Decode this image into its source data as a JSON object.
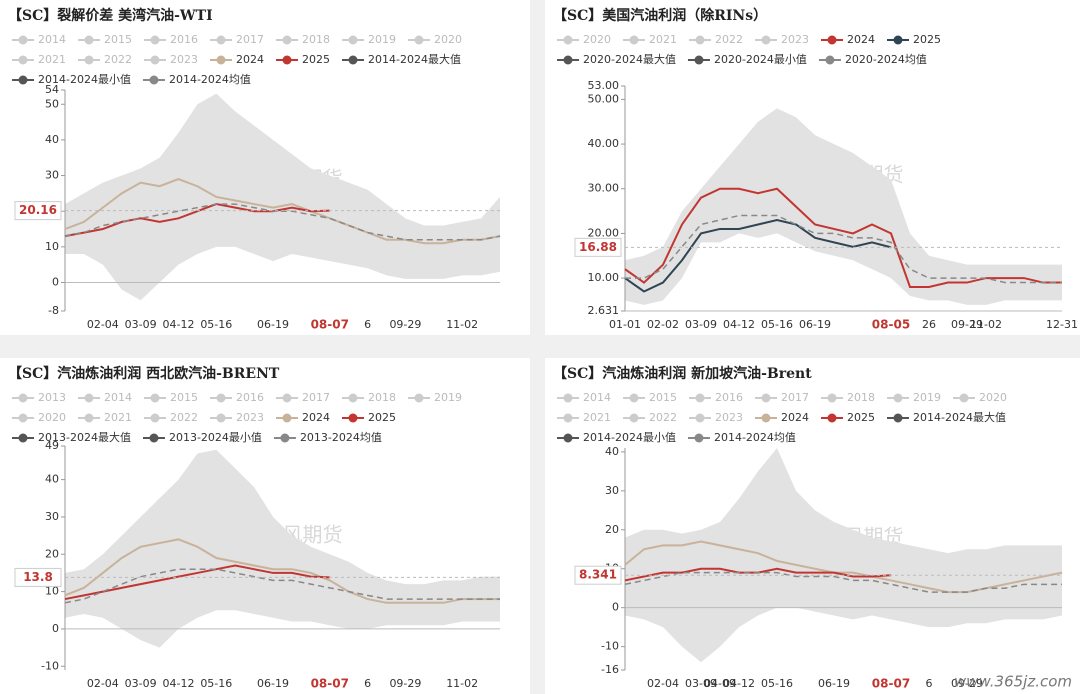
{
  "chart_data": [
    {
      "type": "line",
      "title": "【SC】裂解价差 美湾汽油-WTI",
      "watermark": "紫金天风期货",
      "band_color": "#e2e2e2",
      "categories": [
        null,
        null,
        "02-04",
        null,
        "03-09",
        null,
        "04-12",
        null,
        "05-16",
        null,
        null,
        "06-19",
        null,
        null,
        "08-07",
        null,
        "6",
        null,
        "09-29",
        null,
        null,
        "11-02",
        null,
        null
      ],
      "ylim": [
        -8,
        54
      ],
      "yticks": [
        -8,
        0,
        10,
        20,
        30,
        40,
        50,
        54
      ],
      "pointer": {
        "category": "08-07",
        "value": 20.16
      },
      "series": [
        {
          "name": "2014",
          "color": "#cccccc"
        },
        {
          "name": "2015",
          "color": "#cccccc"
        },
        {
          "name": "2016",
          "color": "#cccccc"
        },
        {
          "name": "2017",
          "color": "#cccccc"
        },
        {
          "name": "2018",
          "color": "#cccccc"
        },
        {
          "name": "2019",
          "color": "#cccccc"
        },
        {
          "name": "2020",
          "color": "#cccccc"
        },
        {
          "name": "2021",
          "color": "#cccccc"
        },
        {
          "name": "2022",
          "color": "#cccccc"
        },
        {
          "name": "2023",
          "color": "#cccccc"
        },
        {
          "name": "2024",
          "color": "#c9b29a",
          "values": [
            15,
            17,
            21,
            25,
            28,
            27,
            29,
            27,
            24,
            23,
            22,
            21,
            22,
            20,
            18,
            16,
            14,
            12,
            12,
            11,
            11,
            12,
            12,
            13
          ]
        },
        {
          "name": "2025",
          "color": "#c23531",
          "values": [
            13,
            14,
            15,
            17,
            18,
            17,
            18,
            20,
            22,
            21,
            20,
            20,
            21,
            20,
            20.16,
            null,
            null,
            null,
            null,
            null,
            null,
            null,
            null,
            null
          ]
        },
        {
          "name": "2014-2024最大值",
          "color": "#555555",
          "band": "upper",
          "values": [
            22,
            25,
            28,
            30,
            32,
            35,
            42,
            50,
            53,
            48,
            44,
            40,
            36,
            32,
            30,
            28,
            26,
            22,
            18,
            16,
            16,
            17,
            18,
            24
          ]
        },
        {
          "name": "2014-2024最小值",
          "color": "#555555",
          "band": "lower",
          "values": [
            8,
            8,
            5,
            -2,
            -5,
            0,
            5,
            8,
            10,
            10,
            8,
            6,
            8,
            7,
            6,
            5,
            4,
            2,
            1,
            1,
            1,
            2,
            2,
            3
          ]
        },
        {
          "name": "2014-2024均值",
          "color": "#888888",
          "dash": true,
          "values": [
            13,
            14,
            16,
            17,
            18,
            19,
            20,
            21,
            22,
            22,
            21,
            20,
            20,
            19,
            18,
            16,
            14,
            13,
            12,
            12,
            12,
            12,
            12,
            13
          ]
        }
      ]
    },
    {
      "type": "line",
      "title": "【SC】美国汽油利润（除RINs）",
      "watermark": "紫金天风期货",
      "band_color": "#e2e2e2",
      "categories": [
        "01-01",
        null,
        "02-02",
        null,
        "03-09",
        null,
        "04-12",
        null,
        "05-16",
        null,
        "06-19",
        null,
        null,
        null,
        "08-05",
        null,
        "26",
        null,
        "09-29",
        "11-02",
        null,
        null,
        null,
        "12-31"
      ],
      "ylim": [
        2.631,
        53
      ],
      "yticks": [
        2.631,
        {
          "value": 10,
          "label": "10.00"
        },
        {
          "value": 20,
          "label": "20.00"
        },
        {
          "value": 30,
          "label": "30.00"
        },
        {
          "value": 40,
          "label": "40.00"
        },
        {
          "value": 50,
          "label": "50.00"
        },
        {
          "value": 53,
          "label": "53.00"
        }
      ],
      "pointer": {
        "category": "08-05",
        "value": 16.88
      },
      "series": [
        {
          "name": "2020",
          "color": "#cccccc"
        },
        {
          "name": "2021",
          "color": "#cccccc"
        },
        {
          "name": "2022",
          "color": "#cccccc"
        },
        {
          "name": "2023",
          "color": "#cccccc"
        },
        {
          "name": "2024",
          "color": "#c23531",
          "values": [
            12,
            9,
            13,
            22,
            28,
            30,
            30,
            29,
            30,
            26,
            22,
            21,
            20,
            22,
            20,
            8,
            8,
            9,
            9,
            10,
            10,
            10,
            9,
            9
          ]
        },
        {
          "name": "2025",
          "color": "#2f4554",
          "values": [
            10,
            7,
            9,
            14,
            20,
            21,
            21,
            22,
            23,
            22,
            19,
            18,
            17,
            18,
            16.88,
            null,
            null,
            null,
            null,
            null,
            null,
            null,
            null,
            null
          ]
        },
        {
          "name": "2020-2024最大值",
          "color": "#555555",
          "band": "upper",
          "values": [
            14,
            15,
            17,
            25,
            30,
            35,
            40,
            45,
            48,
            46,
            42,
            40,
            38,
            35,
            32,
            20,
            15,
            14,
            13,
            13,
            13,
            13,
            13,
            13
          ]
        },
        {
          "name": "2020-2024最小值",
          "color": "#555555",
          "band": "lower",
          "values": [
            5,
            4,
            5,
            10,
            18,
            18,
            20,
            19,
            20,
            18,
            16,
            15,
            14,
            12,
            10,
            6,
            5,
            5,
            4,
            4,
            5,
            5,
            5,
            5
          ]
        },
        {
          "name": "2020-2024均值",
          "color": "#888888",
          "dash": true,
          "values": [
            10,
            10,
            12,
            17,
            22,
            23,
            24,
            24,
            24,
            22,
            20,
            20,
            19,
            19,
            18,
            12,
            10,
            10,
            10,
            10,
            9,
            9,
            9,
            9
          ]
        }
      ]
    },
    {
      "type": "line",
      "title": "【SC】汽油炼油利润 西北欧汽油-BRENT",
      "watermark": "紫金天风期货",
      "band_color": "#e2e2e2",
      "categories": [
        null,
        null,
        "02-04",
        null,
        "03-09",
        null,
        "04-12",
        null,
        "05-16",
        null,
        null,
        "06-19",
        null,
        null,
        "08-07",
        null,
        "6",
        null,
        "09-29",
        null,
        null,
        "11-02",
        null,
        null
      ],
      "ylim": [
        -11,
        49
      ],
      "yticks": [
        -10,
        0,
        10,
        20,
        30,
        40,
        49
      ],
      "pointer": {
        "category": "08-07",
        "value": 13.8
      },
      "series": [
        {
          "name": "2013",
          "color": "#cccccc"
        },
        {
          "name": "2014",
          "color": "#cccccc"
        },
        {
          "name": "2015",
          "color": "#cccccc"
        },
        {
          "name": "2016",
          "color": "#cccccc"
        },
        {
          "name": "2017",
          "color": "#cccccc"
        },
        {
          "name": "2018",
          "color": "#cccccc"
        },
        {
          "name": "2019",
          "color": "#cccccc"
        },
        {
          "name": "2020",
          "color": "#cccccc"
        },
        {
          "name": "2021",
          "color": "#cccccc"
        },
        {
          "name": "2022",
          "color": "#cccccc"
        },
        {
          "name": "2023",
          "color": "#cccccc"
        },
        {
          "name": "2024",
          "color": "#c9b29a",
          "values": [
            9,
            11,
            15,
            19,
            22,
            23,
            24,
            22,
            19,
            18,
            17,
            16,
            16,
            15,
            13,
            10,
            8,
            7,
            7,
            7,
            7,
            8,
            8,
            8
          ]
        },
        {
          "name": "2025",
          "color": "#c23531",
          "values": [
            8,
            9,
            10,
            11,
            12,
            13,
            14,
            15,
            16,
            17,
            16,
            15,
            15,
            14,
            13.8,
            null,
            null,
            null,
            null,
            null,
            null,
            null,
            null,
            null
          ]
        },
        {
          "name": "2013-2024最大值",
          "color": "#555555",
          "band": "upper",
          "values": [
            15,
            16,
            20,
            25,
            30,
            35,
            40,
            47,
            48,
            43,
            38,
            30,
            25,
            22,
            20,
            18,
            15,
            13,
            12,
            12,
            13,
            13,
            14,
            14
          ]
        },
        {
          "name": "2013-2024最小值",
          "color": "#555555",
          "band": "lower",
          "values": [
            3,
            4,
            3,
            0,
            -3,
            -5,
            0,
            3,
            5,
            5,
            4,
            3,
            2,
            2,
            1,
            0,
            0,
            1,
            1,
            1,
            1,
            2,
            2,
            2
          ]
        },
        {
          "name": "2013-2024均值",
          "color": "#888888",
          "dash": true,
          "values": [
            7,
            8,
            10,
            12,
            14,
            15,
            16,
            16,
            16,
            15,
            14,
            13,
            13,
            12,
            11,
            10,
            9,
            8,
            8,
            8,
            8,
            8,
            8,
            8
          ]
        }
      ]
    },
    {
      "type": "line",
      "title": "【SC】汽油炼油利润 新加坡汽油-Brent",
      "watermark": "紫金天风期货",
      "band_color": "#e2e2e2",
      "categories": [
        null,
        null,
        "02-04",
        null,
        "03-09",
        "04-09",
        "04-12",
        null,
        "05-16",
        null,
        null,
        "06-19",
        null,
        null,
        "08-07",
        null,
        "6",
        null,
        "09-29",
        null,
        null,
        null,
        null,
        null
      ],
      "ylim": [
        -16,
        41
      ],
      "yticks": [
        -16,
        -10,
        0,
        10,
        20,
        30,
        40
      ],
      "pointer": {
        "category": "08-07",
        "value": 8.341
      },
      "series": [
        {
          "name": "2014",
          "color": "#cccccc"
        },
        {
          "name": "2015",
          "color": "#cccccc"
        },
        {
          "name": "2016",
          "color": "#cccccc"
        },
        {
          "name": "2017",
          "color": "#cccccc"
        },
        {
          "name": "2018",
          "color": "#cccccc"
        },
        {
          "name": "2019",
          "color": "#cccccc"
        },
        {
          "name": "2020",
          "color": "#cccccc"
        },
        {
          "name": "2021",
          "color": "#cccccc"
        },
        {
          "name": "2022",
          "color": "#cccccc"
        },
        {
          "name": "2023",
          "color": "#cccccc"
        },
        {
          "name": "2024",
          "color": "#c9b29a",
          "values": [
            11,
            15,
            16,
            16,
            17,
            16,
            15,
            14,
            12,
            11,
            10,
            9,
            9,
            8,
            7,
            6,
            5,
            4,
            4,
            5,
            6,
            7,
            8,
            9
          ]
        },
        {
          "name": "2025",
          "color": "#c23531",
          "values": [
            7,
            8,
            9,
            9,
            10,
            10,
            9,
            9,
            10,
            9,
            9,
            9,
            8,
            8,
            8.341,
            null,
            null,
            null,
            null,
            null,
            null,
            null,
            null,
            null
          ]
        },
        {
          "name": "2014-2024最大值",
          "color": "#555555",
          "band": "upper",
          "values": [
            18,
            20,
            20,
            19,
            20,
            22,
            28,
            35,
            41,
            30,
            25,
            22,
            20,
            18,
            17,
            16,
            15,
            14,
            15,
            15,
            16,
            16,
            16,
            16
          ]
        },
        {
          "name": "2014-2024最小值",
          "color": "#555555",
          "band": "lower",
          "values": [
            -2,
            -3,
            -5,
            -10,
            -14,
            -10,
            -5,
            -2,
            0,
            0,
            -1,
            -2,
            -3,
            -2,
            -3,
            -4,
            -5,
            -5,
            -4,
            -4,
            -3,
            -3,
            -3,
            -2
          ]
        },
        {
          "name": "2014-2024均值",
          "color": "#888888",
          "dash": true,
          "values": [
            6,
            7,
            8,
            9,
            9,
            9,
            9,
            9,
            9,
            8,
            8,
            8,
            7,
            7,
            6,
            5,
            4,
            4,
            4,
            5,
            5,
            6,
            6,
            6
          ]
        }
      ]
    }
  ],
  "footer_watermark": "www.365jz.com"
}
